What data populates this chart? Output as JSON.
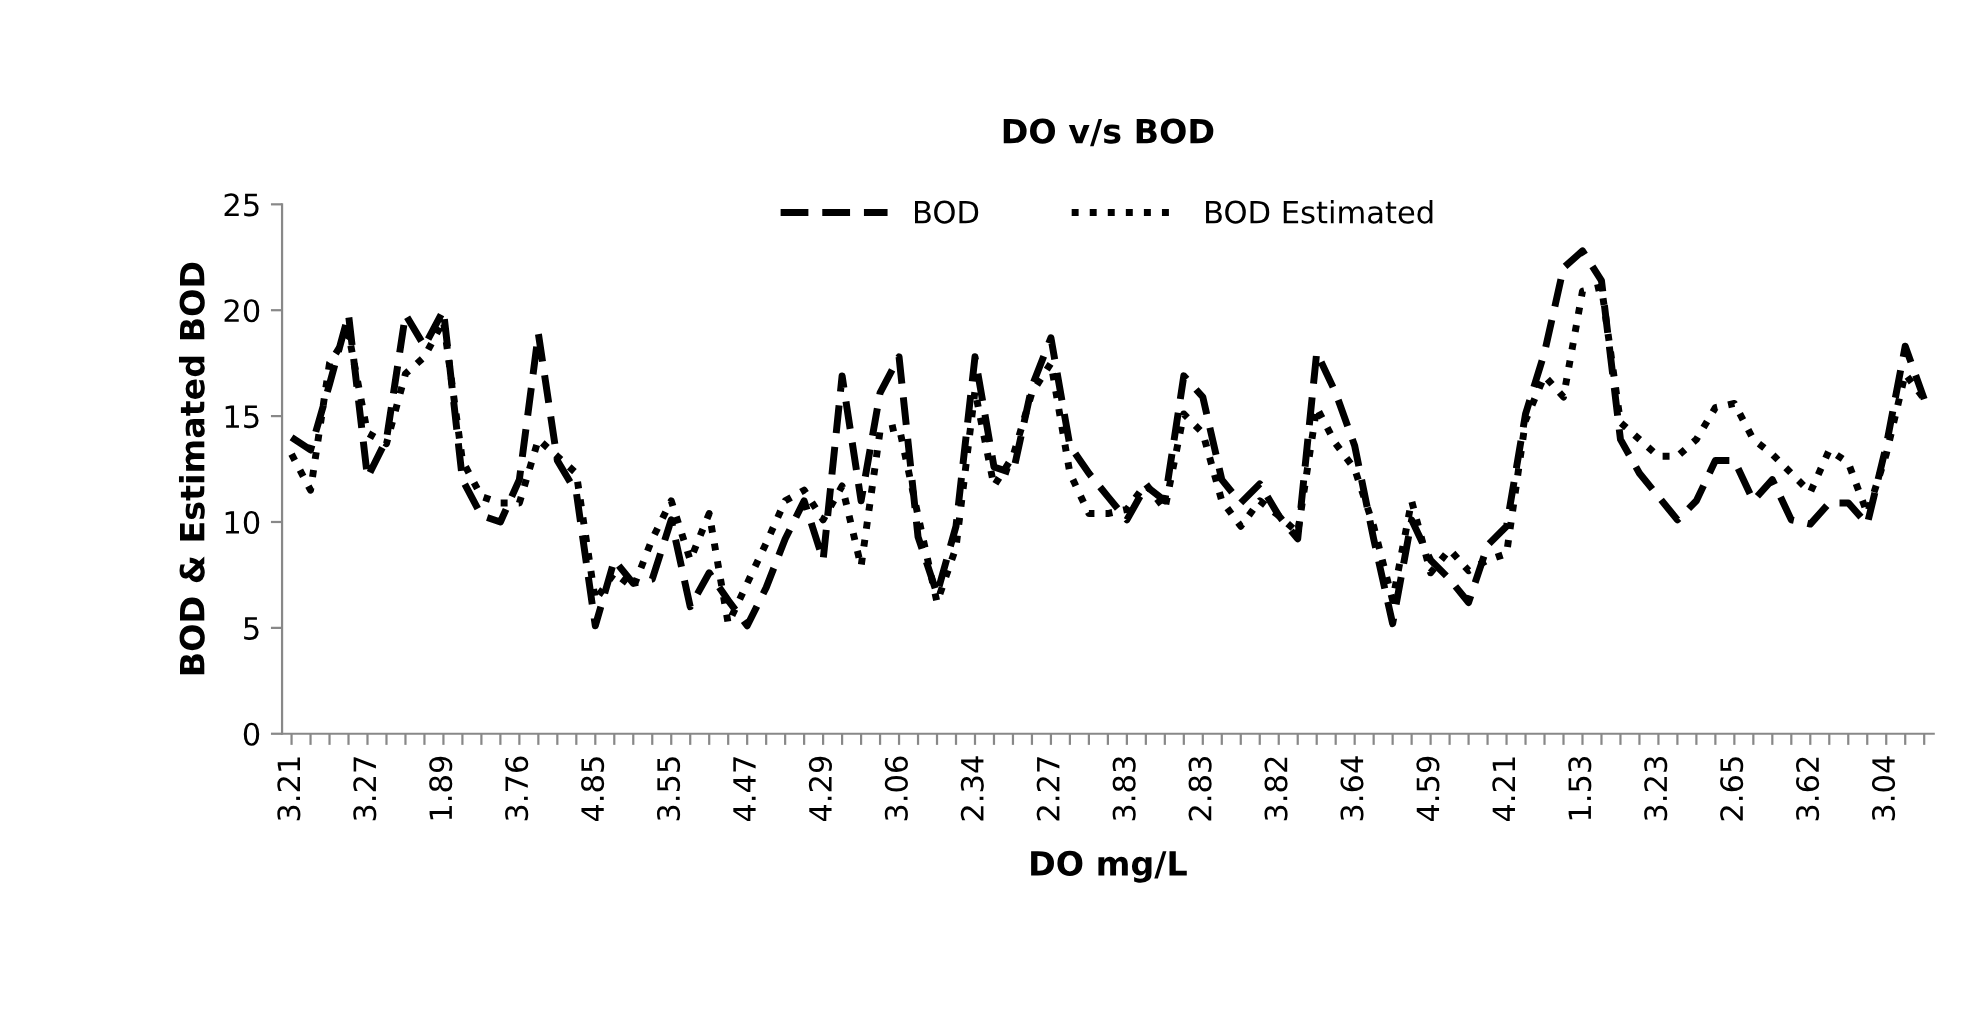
{
  "chart_data": {
    "type": "line",
    "title": "DO v/s BOD",
    "xlabel": "DO mg/L",
    "ylabel": "BOD & Estimated BOD",
    "categories": [
      "3.21",
      null,
      null,
      null,
      "3.27",
      null,
      null,
      null,
      "1.89",
      null,
      null,
      null,
      "3.76",
      null,
      null,
      null,
      "4.85",
      null,
      null,
      null,
      "3.55",
      null,
      null,
      null,
      "4.47",
      null,
      null,
      null,
      "4.29",
      null,
      null,
      null,
      "3.06",
      null,
      null,
      null,
      "2.34",
      null,
      null,
      null,
      "2.27",
      null,
      null,
      null,
      "3.83",
      null,
      null,
      null,
      "2.83",
      null,
      null,
      null,
      "3.82",
      null,
      null,
      null,
      "3.64",
      null,
      null,
      null,
      "4.59",
      null,
      null,
      null,
      "4.21",
      null,
      null,
      null,
      "1.53",
      null,
      null,
      null,
      "3.23",
      null,
      null,
      null,
      "2.65",
      null,
      null,
      null,
      "3.62",
      null,
      null,
      null,
      "3.04",
      null,
      null
    ],
    "series": [
      {
        "name": "BOD",
        "color": "#000000",
        "line_style": "dashed",
        "values": [
          14.0,
          13.4,
          16.5,
          19.8,
          12.1,
          13.9,
          19.8,
          18.3,
          20.0,
          12.0,
          10.3,
          10.0,
          12.0,
          18.9,
          12.9,
          11.4,
          5.1,
          8.2,
          7.1,
          7.3,
          10.1,
          6.0,
          7.6,
          6.3,
          5.1,
          6.9,
          9.2,
          11.0,
          8.2,
          16.9,
          11.0,
          16.1,
          17.8,
          9.3,
          6.6,
          9.8,
          17.8,
          12.6,
          12.3,
          16.4,
          18.7,
          13.6,
          12.3,
          11.2,
          10.1,
          11.7,
          11.0,
          16.9,
          15.9,
          12.0,
          10.9,
          11.8,
          10.3,
          9.2,
          18.0,
          16.1,
          13.6,
          9.2,
          5.2,
          10.1,
          8.2,
          7.3,
          6.2,
          8.9,
          9.8,
          15.1,
          18.0,
          22.0,
          22.8,
          21.4,
          13.9,
          12.3,
          11.2,
          10.1,
          11.0,
          12.9,
          12.9,
          11.0,
          12.0,
          10.1,
          9.9,
          10.9,
          10.9,
          9.9,
          13.6,
          18.3,
          15.8
        ]
      },
      {
        "name": "BOD Estimated",
        "color": "#000000",
        "line_style": "dotted",
        "values": [
          13.2,
          11.5,
          17.5,
          18.9,
          14.2,
          13.7,
          17.0,
          17.8,
          19.5,
          12.9,
          11.2,
          10.9,
          10.9,
          13.9,
          13.1,
          12.3,
          6.3,
          7.6,
          6.9,
          9.2,
          11.0,
          8.2,
          10.4,
          5.2,
          7.1,
          9.0,
          11.0,
          11.5,
          10.1,
          11.7,
          7.9,
          14.3,
          14.5,
          10.3,
          6.2,
          8.8,
          16.2,
          11.7,
          13.1,
          16.1,
          17.5,
          12.3,
          10.4,
          10.4,
          10.6,
          11.8,
          10.6,
          15.1,
          14.2,
          11.0,
          9.8,
          11.0,
          10.3,
          9.5,
          15.4,
          13.7,
          12.5,
          9.8,
          6.3,
          11.0,
          7.6,
          8.7,
          7.7,
          8.2,
          8.5,
          14.8,
          16.9,
          15.9,
          20.9,
          21.1,
          14.7,
          13.9,
          13.1,
          13.1,
          13.9,
          15.4,
          15.6,
          13.9,
          13.2,
          12.3,
          11.4,
          13.4,
          12.8,
          10.4,
          13.2,
          17.0,
          15.8
        ]
      }
    ],
    "ylim": [
      0,
      25
    ],
    "yticks": [
      0,
      5,
      10,
      15,
      20,
      25
    ],
    "grid": false,
    "legend": "top",
    "marker": "none"
  }
}
